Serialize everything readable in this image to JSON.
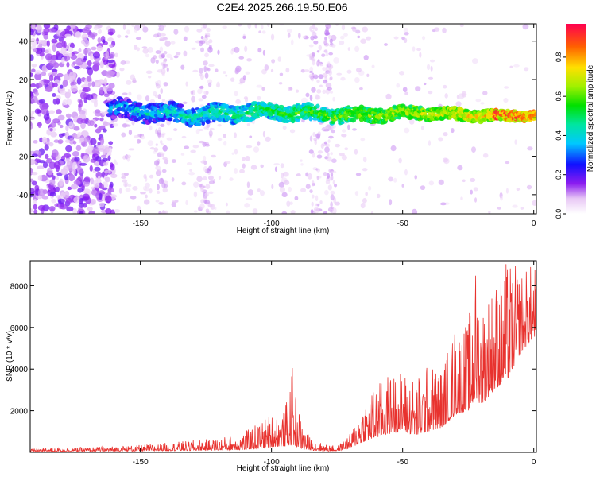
{
  "title": "C2E4.2025.266.19.50.E06",
  "colors": {
    "signal_line": "#e8322e",
    "spectro_low": "#9b5ce0",
    "axis": "#000000"
  },
  "chart_data": [
    {
      "type": "heatmap",
      "name": "spectrogram",
      "title": "C2E4.2025.266.19.50.E06",
      "xlabel": "Height of straight line (km)",
      "ylabel": "Frequency (Hz)",
      "xlim": [
        -192,
        1
      ],
      "ylim": [
        -50,
        49
      ],
      "xticks": [
        -150,
        -100,
        -50,
        0
      ],
      "yticks": [
        -40,
        -20,
        0,
        20,
        40
      ],
      "colorbar": {
        "label": "Normalized spectral amplitude",
        "range": [
          0.0,
          0.97
        ],
        "ticks": [
          0.0,
          0.2,
          0.4,
          0.6,
          0.8
        ],
        "tick_labels": [
          "0.0",
          "0.2",
          "0.4",
          "0.6",
          "0.8"
        ]
      },
      "description_band": {
        "onset_x": -162,
        "center_freq": 3,
        "band_halfwidth": 5,
        "noise_dense_region": [
          -192,
          -160
        ],
        "vertical_noise_columns": [
          -142,
          -125,
          -83,
          -78
        ]
      }
    },
    {
      "type": "line",
      "name": "snr",
      "xlabel": "Height of straight line (km)",
      "ylabel": "SNR (10 * v/v)",
      "xlim": [
        -192,
        1
      ],
      "ylim": [
        0,
        9200
      ],
      "xticks": [
        -150,
        -100,
        -50,
        0
      ],
      "yticks": [
        2000,
        4000,
        6000,
        8000
      ],
      "envelope": {
        "x": [
          -192,
          -170,
          -150,
          -135,
          -120,
          -110,
          -100,
          -95,
          -92,
          -90,
          -88,
          -85,
          -80,
          -75,
          -70,
          -65,
          -60,
          -55,
          -50,
          -45,
          -40,
          -35,
          -30,
          -25,
          -22,
          -20,
          -15,
          -10,
          -5,
          0
        ],
        "peak": [
          180,
          250,
          350,
          520,
          700,
          1000,
          1900,
          2000,
          4100,
          2300,
          1300,
          700,
          400,
          300,
          900,
          2500,
          3300,
          3800,
          4000,
          3600,
          4300,
          4100,
          6200,
          6300,
          9200,
          7200,
          8300,
          9300,
          8800,
          9100
        ],
        "base": [
          40,
          50,
          60,
          80,
          100,
          120,
          250,
          300,
          350,
          250,
          150,
          100,
          60,
          60,
          200,
          500,
          700,
          900,
          1000,
          800,
          1000,
          1200,
          1800,
          2000,
          2500,
          2300,
          3000,
          3500,
          4800,
          5500
        ]
      }
    }
  ]
}
